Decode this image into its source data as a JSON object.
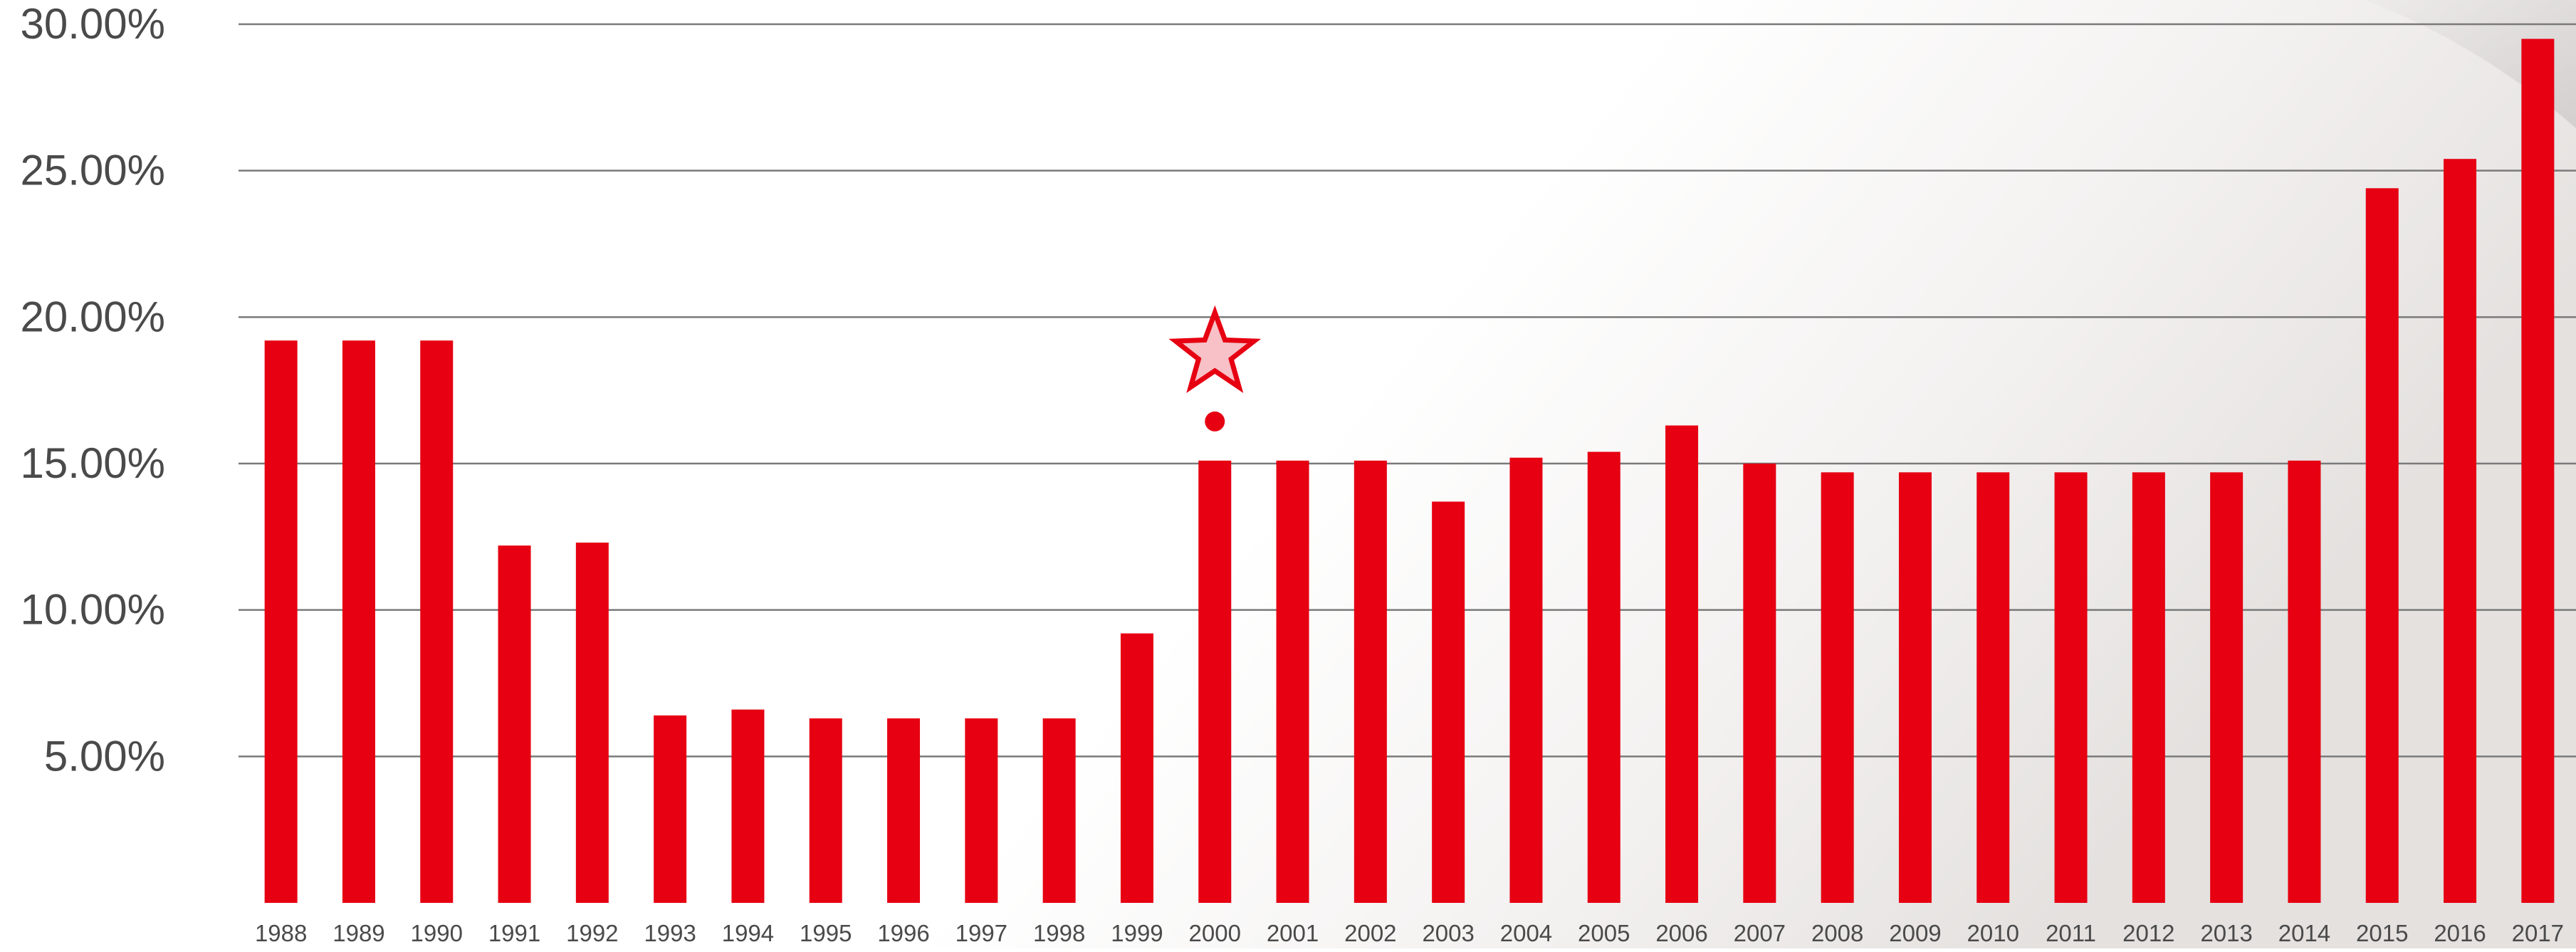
{
  "chart_data": {
    "type": "bar",
    "title": "",
    "xlabel": "",
    "ylabel": "",
    "categories": [
      "1988",
      "1989",
      "1990",
      "1991",
      "1992",
      "1993",
      "1994",
      "1995",
      "1996",
      "1997",
      "1998",
      "1999",
      "2000",
      "2001",
      "2002",
      "2003",
      "2004",
      "2005",
      "2006",
      "2007",
      "2008",
      "2009",
      "2010",
      "2011",
      "2012",
      "2013",
      "2014",
      "2015",
      "2016",
      "2017"
    ],
    "values": [
      19.2,
      19.2,
      19.2,
      12.2,
      12.3,
      6.4,
      6.6,
      6.3,
      6.3,
      6.3,
      6.3,
      9.2,
      15.1,
      15.1,
      15.1,
      13.7,
      15.2,
      15.4,
      16.3,
      15.0,
      14.7,
      14.7,
      14.7,
      14.7,
      14.7,
      14.7,
      15.1,
      24.4,
      25.4,
      29.5
    ],
    "ylim": [
      0,
      30
    ],
    "yticks": [
      5,
      10,
      15,
      20,
      25,
      30
    ],
    "ytick_labels": [
      "5.00%",
      "10.00%",
      "15.00%",
      "20.00%",
      "25.00%",
      "30.00%"
    ],
    "grid": true,
    "bar_color": "#e60012",
    "highlight": {
      "category": "2000",
      "label_color": "#e60012",
      "marker": "star-icon",
      "star_fill": "#f7c1c7",
      "star_stroke": "#e60012",
      "dot_color": "#e60012"
    }
  }
}
